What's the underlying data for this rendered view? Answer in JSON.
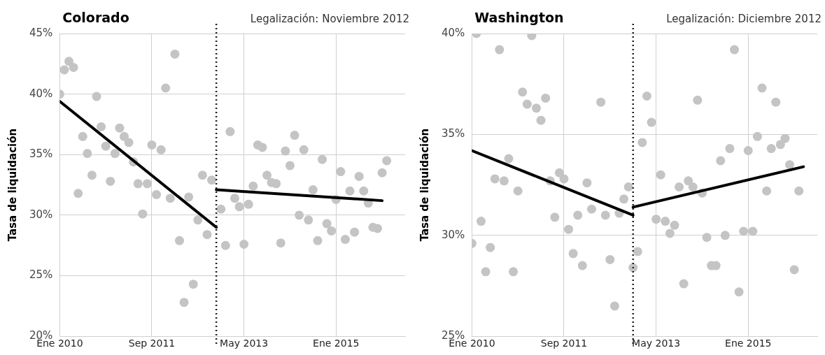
{
  "chart_data": [
    {
      "type": "scatter",
      "title": "Colorado",
      "subtitle": "Legalización: Noviembre 2012",
      "ylabel": "Tasa de liquidación",
      "xlim": [
        "2010-01",
        "2016-04"
      ],
      "xticks": [
        {
          "value": "2010-01",
          "label": "Ene 2010"
        },
        {
          "value": "2011-09",
          "label": "Sep 2011"
        },
        {
          "value": "2013-05",
          "label": "May 2013"
        },
        {
          "value": "2015-01",
          "label": "Ene 2015"
        }
      ],
      "ylim": [
        20,
        45
      ],
      "yticks": [
        {
          "value": 20,
          "label": "20%"
        },
        {
          "value": 25,
          "label": "25%"
        },
        {
          "value": 30,
          "label": "30%"
        },
        {
          "value": 35,
          "label": "35%"
        },
        {
          "value": 40,
          "label": "40%"
        },
        {
          "value": 45,
          "label": "45%"
        }
      ],
      "grid": true,
      "legend": false,
      "ref_lines": [
        {
          "axis": "x",
          "value": "2012-11",
          "color": "#222222",
          "line_style": "dotted"
        }
      ],
      "series": [
        {
          "marker": "circle",
          "color": "#c4c4c4",
          "x": [
            "2010-01",
            "2010-02",
            "2010-03",
            "2010-04",
            "2010-05",
            "2010-06",
            "2010-07",
            "2010-08",
            "2010-09",
            "2010-10",
            "2010-11",
            "2010-12",
            "2011-01",
            "2011-02",
            "2011-03",
            "2011-04",
            "2011-05",
            "2011-06",
            "2011-07",
            "2011-08",
            "2011-09",
            "2011-10",
            "2011-11",
            "2011-12",
            "2012-01",
            "2012-02",
            "2012-03",
            "2012-04",
            "2012-05",
            "2012-06",
            "2012-07",
            "2012-08",
            "2012-09",
            "2012-10",
            "2012-12",
            "2013-01",
            "2013-02",
            "2013-03",
            "2013-04",
            "2013-05",
            "2013-06",
            "2013-07",
            "2013-08",
            "2013-09",
            "2013-10",
            "2013-11",
            "2013-12",
            "2014-01",
            "2014-02",
            "2014-03",
            "2014-04",
            "2014-05",
            "2014-06",
            "2014-07",
            "2014-08",
            "2014-09",
            "2014-10",
            "2014-11",
            "2014-12",
            "2015-01",
            "2015-02",
            "2015-03",
            "2015-04",
            "2015-05",
            "2015-06",
            "2015-07",
            "2015-08",
            "2015-09",
            "2015-10",
            "2015-11",
            "2015-12"
          ],
          "values": [
            40.0,
            42.0,
            42.7,
            42.2,
            31.8,
            36.5,
            35.1,
            33.3,
            39.8,
            37.3,
            35.7,
            32.8,
            35.1,
            37.2,
            36.5,
            36.0,
            34.4,
            32.6,
            30.1,
            32.6,
            35.8,
            31.7,
            35.4,
            40.5,
            31.4,
            43.3,
            27.9,
            22.8,
            31.5,
            24.3,
            29.6,
            33.3,
            28.4,
            32.9,
            30.5,
            27.5,
            36.9,
            31.4,
            30.7,
            27.6,
            30.9,
            32.4,
            35.8,
            35.6,
            33.3,
            32.7,
            32.6,
            27.7,
            35.3,
            34.1,
            36.6,
            30.0,
            35.4,
            29.6,
            32.1,
            27.9,
            34.6,
            29.3,
            28.7,
            31.3,
            33.6,
            28.0,
            32.0,
            28.6,
            33.2,
            32.0,
            31.0,
            29.0,
            28.9,
            33.5,
            34.5
          ]
        },
        {
          "type": "line",
          "marker": "none",
          "color": "#000000",
          "x": [
            "2010-01",
            "2012-11"
          ],
          "values": [
            39.4,
            29.0
          ]
        },
        {
          "type": "line",
          "marker": "none",
          "color": "#000000",
          "x": [
            "2012-11",
            "2015-11"
          ],
          "values": [
            32.1,
            31.2
          ]
        }
      ]
    },
    {
      "type": "scatter",
      "title": "Washington",
      "subtitle": "Legalización: Diciembre 2012",
      "ylabel": "Tasa de liquidación",
      "xlim": [
        "2010-01",
        "2016-04"
      ],
      "xticks": [
        {
          "value": "2010-01",
          "label": "Ene 2010"
        },
        {
          "value": "2011-09",
          "label": "Sep 2011"
        },
        {
          "value": "2013-05",
          "label": "May 2013"
        },
        {
          "value": "2015-01",
          "label": "Ene 2015"
        }
      ],
      "ylim": [
        25,
        40
      ],
      "yticks": [
        {
          "value": 25,
          "label": "25%"
        },
        {
          "value": 30,
          "label": "30%"
        },
        {
          "value": 35,
          "label": "35%"
        },
        {
          "value": 40,
          "label": "40%"
        }
      ],
      "grid": true,
      "legend": false,
      "ref_lines": [
        {
          "axis": "x",
          "value": "2012-12",
          "color": "#222222",
          "line_style": "dotted"
        }
      ],
      "series": [
        {
          "marker": "circle",
          "color": "#c4c4c4",
          "x": [
            "2010-01",
            "2010-02",
            "2010-03",
            "2010-04",
            "2010-05",
            "2010-06",
            "2010-07",
            "2010-08",
            "2010-09",
            "2010-10",
            "2010-11",
            "2010-12",
            "2011-01",
            "2011-02",
            "2011-03",
            "2011-04",
            "2011-05",
            "2011-06",
            "2011-07",
            "2011-08",
            "2011-09",
            "2011-10",
            "2011-11",
            "2011-12",
            "2012-01",
            "2012-02",
            "2012-03",
            "2012-05",
            "2012-06",
            "2012-07",
            "2012-08",
            "2012-09",
            "2012-10",
            "2012-11",
            "2012-12",
            "2013-01",
            "2013-02",
            "2013-03",
            "2013-04",
            "2013-05",
            "2013-06",
            "2013-07",
            "2013-08",
            "2013-09",
            "2013-10",
            "2013-11",
            "2013-12",
            "2014-01",
            "2014-02",
            "2014-03",
            "2014-04",
            "2014-05",
            "2014-06",
            "2014-07",
            "2014-08",
            "2014-09",
            "2014-10",
            "2014-11",
            "2014-12",
            "2015-01",
            "2015-02",
            "2015-03",
            "2015-04",
            "2015-05",
            "2015-06",
            "2015-07",
            "2015-08",
            "2015-09",
            "2015-10",
            "2015-11",
            "2015-12"
          ],
          "values": [
            29.6,
            40.0,
            30.7,
            28.2,
            29.4,
            32.8,
            39.2,
            32.7,
            33.8,
            28.2,
            32.2,
            37.1,
            36.5,
            39.9,
            36.3,
            35.7,
            36.8,
            32.7,
            30.9,
            33.1,
            32.8,
            30.3,
            29.1,
            31.0,
            28.5,
            32.6,
            31.3,
            36.6,
            31.0,
            28.8,
            26.5,
            31.1,
            31.8,
            32.4,
            28.4,
            29.2,
            34.6,
            36.9,
            35.6,
            30.8,
            33.0,
            30.7,
            30.1,
            30.5,
            32.4,
            27.6,
            32.7,
            32.4,
            36.7,
            32.1,
            29.9,
            28.5,
            28.5,
            33.7,
            30.0,
            34.3,
            39.2,
            27.2,
            30.2,
            34.2,
            30.2,
            34.9,
            37.3,
            32.2,
            34.3,
            36.6,
            34.5,
            34.8,
            33.5,
            28.3,
            32.2
          ]
        },
        {
          "type": "line",
          "marker": "none",
          "color": "#000000",
          "x": [
            "2010-01",
            "2012-12"
          ],
          "values": [
            34.2,
            31.0
          ]
        },
        {
          "type": "line",
          "marker": "none",
          "color": "#000000",
          "x": [
            "2012-12",
            "2016-01"
          ],
          "values": [
            31.4,
            33.4
          ]
        }
      ]
    }
  ]
}
